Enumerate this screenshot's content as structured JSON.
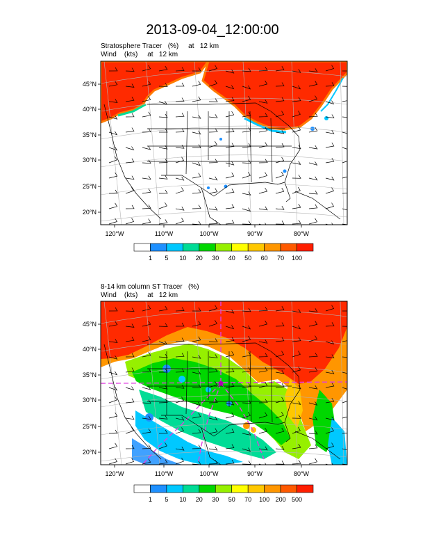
{
  "page_title": "2013-09-04_12:00:00",
  "panels": [
    {
      "title_line1": "Stratosphere Tracer   (%)     at   12 km",
      "title_line2": "Wind    (kts)     at   12 km",
      "lat_labels": [
        "45°N",
        "40°N",
        "35°N",
        "30°N",
        "25°N",
        "20°N"
      ],
      "lon_labels": [
        "120°W",
        "110°W",
        "100°W",
        "90°W",
        "80°W"
      ],
      "colorbar": {
        "colors": [
          "#ffffff",
          "#1e90ff",
          "#00c8ff",
          "#00dc96",
          "#00d700",
          "#96f000",
          "#ffff00",
          "#ffc800",
          "#ff9600",
          "#ff5a00",
          "#ff1e00"
        ],
        "labels": [
          "1",
          "5",
          "10",
          "20",
          "30",
          "40",
          "50",
          "60",
          "70",
          "100"
        ]
      }
    },
    {
      "title_line1": "8-14 km column ST Tracer   (%)",
      "title_line2": "Wind    (kts)     at   12 km",
      "lat_labels": [
        "45°N",
        "40°N",
        "35°N",
        "30°N",
        "25°N",
        "20°N"
      ],
      "lon_labels": [
        "120°W",
        "110°W",
        "100°W",
        "90°W",
        "80°W"
      ],
      "colorbar": {
        "colors": [
          "#ffffff",
          "#1e90ff",
          "#00c8ff",
          "#00dc96",
          "#00d700",
          "#96f000",
          "#ffff00",
          "#ffc800",
          "#ff9600",
          "#ff5a00",
          "#ff1e00"
        ],
        "labels": [
          "1",
          "5",
          "10",
          "20",
          "30",
          "50",
          "70",
          "100",
          "200",
          "500"
        ]
      }
    }
  ]
}
